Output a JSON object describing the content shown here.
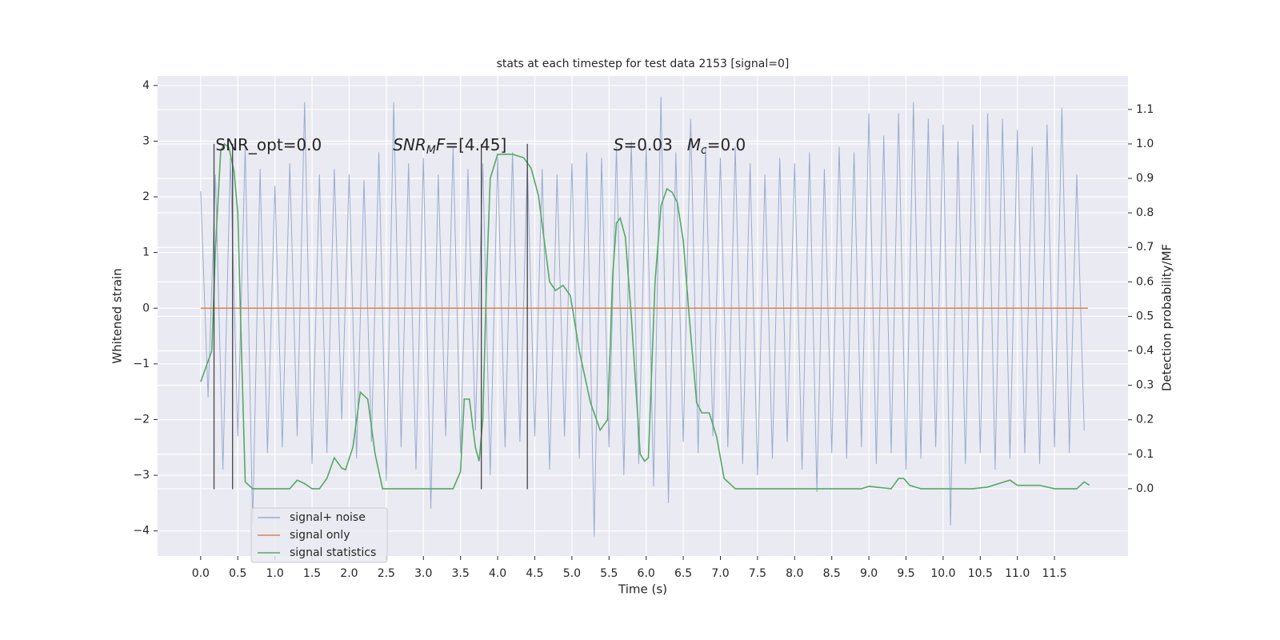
{
  "chart_data": {
    "type": "line",
    "title": "stats at each timestep for test data 2153 [signal=0]",
    "xlabel": "Time (s)",
    "ylabel": "Whitened strain",
    "y2label": "Detection probability/MF",
    "xlim": [
      -0.58,
      12.49
    ],
    "ylim": [
      -4.45,
      4.17
    ],
    "y2lim": [
      -0.195,
      1.197
    ],
    "xticks": [
      {
        "value": 0,
        "label": "0.0"
      },
      0.5,
      {
        "value": 1,
        "label": "1.0"
      },
      1.5,
      {
        "value": 2,
        "label": "2.0"
      },
      2.5,
      {
        "value": 3,
        "label": "3.0"
      },
      3.5,
      {
        "value": 4,
        "label": "4.0"
      },
      4.5,
      {
        "value": 5,
        "label": "5.0"
      },
      5.5,
      {
        "value": 6,
        "label": "6.0"
      },
      6.5,
      {
        "value": 7,
        "label": "7.0"
      },
      7.5,
      {
        "value": 8,
        "label": "8.0"
      },
      8.5,
      {
        "value": 9,
        "label": "9.0"
      },
      9.5,
      {
        "value": 10,
        "label": "10.0"
      },
      10.5,
      {
        "value": 11,
        "label": "11.0"
      },
      11.5
    ],
    "yticks": [
      {
        "value": -4,
        "label": "−4"
      },
      {
        "value": -3,
        "label": "−3"
      },
      {
        "value": -2,
        "label": "−2"
      },
      {
        "value": -1,
        "label": "−1"
      },
      0,
      1,
      2,
      3,
      4
    ],
    "y2ticks": [
      {
        "value": 0,
        "label": "0.0"
      },
      0.1,
      0.2,
      0.3,
      0.4,
      0.5,
      0.6,
      0.7,
      0.8,
      0.9,
      {
        "value": 1,
        "label": "1.0"
      },
      1.1
    ],
    "grid": true,
    "legend": "lower left",
    "series": [
      {
        "name": "signal+ noise",
        "color": "#9aaccf",
        "x": [
          0,
          0.1,
          0.2,
          0.3,
          0.4,
          0.5,
          0.6,
          0.7,
          0.8,
          0.9,
          1,
          1.1,
          1.2,
          1.3,
          1.4,
          1.5,
          1.6,
          1.7,
          1.8,
          1.9,
          2,
          2.1,
          2.2,
          2.3,
          2.4,
          2.5,
          2.6,
          2.7,
          2.8,
          2.9,
          3,
          3.1,
          3.2,
          3.3,
          3.4,
          3.5,
          3.6,
          3.7,
          3.8,
          3.9,
          4,
          4.1,
          4.2,
          4.3,
          4.4,
          4.5,
          4.6,
          4.7,
          4.8,
          4.9,
          5,
          5.1,
          5.2,
          5.3,
          5.4,
          5.5,
          5.6,
          5.7,
          5.8,
          5.9,
          6,
          6.1,
          6.2,
          6.3,
          6.4,
          6.5,
          6.6,
          6.7,
          6.8,
          6.9,
          7,
          7.1,
          7.2,
          7.3,
          7.4,
          7.5,
          7.6,
          7.7,
          7.8,
          7.9,
          8,
          8.1,
          8.2,
          8.3,
          8.4,
          8.5,
          8.6,
          8.7,
          8.8,
          8.9,
          9,
          9.1,
          9.2,
          9.3,
          9.4,
          9.5,
          9.6,
          9.7,
          9.8,
          9.9,
          10,
          10.1,
          10.2,
          10.3,
          10.4,
          10.5,
          10.6,
          10.7,
          10.8,
          10.9,
          11,
          11.1,
          11.2,
          11.3,
          11.4,
          11.5,
          11.6,
          11.7,
          11.8,
          11.9
        ],
        "values": [
          2.1,
          -1.6,
          2.4,
          -2.9,
          2.7,
          -2.3,
          2.9,
          -3.9,
          2.5,
          -2.6,
          2.2,
          -2.5,
          2.6,
          -2.3,
          3.7,
          -2.8,
          2.4,
          -2.6,
          2.5,
          -2.0,
          2.4,
          -2.7,
          2.3,
          -2.4,
          2.8,
          -3.1,
          3.7,
          -2.5,
          2.6,
          -2.9,
          2.7,
          -3.6,
          2.4,
          -2.3,
          2.9,
          -2.6,
          2.5,
          -2.2,
          2.6,
          -3.0,
          2.7,
          -2.5,
          2.8,
          -2.4,
          2.6,
          -2.3,
          2.5,
          -2.9,
          2.4,
          -2.3,
          2.6,
          -2.7,
          2.8,
          -4.1,
          2.7,
          -2.5,
          2.9,
          -3.0,
          3.0,
          -2.8,
          2.9,
          -3.2,
          3.8,
          -3.5,
          2.8,
          -2.4,
          3.4,
          -2.6,
          2.9,
          -2.3,
          2.7,
          -2.5,
          2.9,
          -2.8,
          2.6,
          -3.0,
          2.4,
          -2.7,
          2.7,
          -2.4,
          2.6,
          -2.9,
          2.8,
          -3.3,
          2.5,
          -2.6,
          2.9,
          -2.7,
          2.8,
          -2.5,
          3.5,
          -2.8,
          3.1,
          -2.6,
          3.5,
          -2.9,
          3.7,
          -2.7,
          3.4,
          -2.5,
          3.3,
          -3.9,
          3.0,
          -2.8,
          3.3,
          -2.6,
          3.5,
          -2.9,
          3.4,
          -2.7,
          3.2,
          -2.6,
          2.9,
          -2.8,
          3.3,
          -2.5,
          3.6,
          -2.6,
          2.4,
          -2.2
        ]
      },
      {
        "name": "signal only",
        "color": "#dd8452",
        "x": [
          0,
          11.95
        ],
        "values": [
          0,
          0
        ]
      },
      {
        "name": "signal statistics",
        "color": "#55a868",
        "axis": "y2",
        "x": [
          0,
          0.1,
          0.15,
          0.2,
          0.27,
          0.32,
          0.38,
          0.45,
          0.5,
          0.55,
          0.6,
          0.7,
          1.0,
          1.2,
          1.3,
          1.4,
          1.5,
          1.6,
          1.7,
          1.8,
          1.9,
          1.95,
          2.05,
          2.15,
          2.25,
          2.35,
          2.45,
          3.0,
          3.2,
          3.4,
          3.5,
          3.55,
          3.62,
          3.7,
          3.75,
          3.8,
          3.85,
          3.9,
          4.0,
          4.2,
          4.35,
          4.45,
          4.55,
          4.7,
          4.78,
          4.88,
          4.98,
          5.1,
          5.25,
          5.38,
          5.48,
          5.55,
          5.6,
          5.65,
          5.72,
          5.8,
          5.92,
          5.98,
          6.03,
          6.12,
          6.2,
          6.28,
          6.35,
          6.42,
          6.5,
          6.58,
          6.68,
          6.75,
          6.85,
          6.95,
          7.05,
          7.2,
          8.0,
          8.7,
          8.9,
          9.0,
          9.3,
          9.4,
          9.47,
          9.55,
          9.7,
          10.4,
          10.6,
          10.9,
          11.0,
          11.3,
          11.5,
          11.8,
          11.9,
          11.97
        ],
        "values": [
          0.31,
          0.37,
          0.4,
          0.7,
          0.98,
          1.0,
          0.99,
          0.92,
          0.8,
          0.4,
          0.02,
          0.0,
          0.0,
          0.0,
          0.025,
          0.015,
          0.0,
          0.0,
          0.03,
          0.09,
          0.06,
          0.055,
          0.12,
          0.28,
          0.26,
          0.1,
          0.0,
          0.0,
          0.0,
          0.0,
          0.05,
          0.26,
          0.26,
          0.12,
          0.08,
          0.2,
          0.6,
          0.9,
          0.97,
          0.97,
          0.96,
          0.93,
          0.85,
          0.6,
          0.575,
          0.59,
          0.56,
          0.4,
          0.25,
          0.17,
          0.2,
          0.62,
          0.77,
          0.785,
          0.73,
          0.5,
          0.1,
          0.08,
          0.09,
          0.6,
          0.82,
          0.87,
          0.86,
          0.83,
          0.72,
          0.5,
          0.25,
          0.22,
          0.22,
          0.15,
          0.03,
          0.0,
          0.0,
          0.0,
          0.0,
          0.007,
          0.0,
          0.03,
          0.03,
          0.01,
          0.0,
          0.0,
          0.005,
          0.025,
          0.01,
          0.01,
          0.0,
          0.0,
          0.02,
          0.01
        ]
      }
    ],
    "vlines": {
      "x": [
        0.18,
        0.43,
        3.78,
        4.4
      ],
      "ymin": -3.25,
      "ymax": 2.95,
      "color": "#444444"
    },
    "annotations": [
      {
        "x": 0.2,
        "y": 2.95,
        "parts": [
          {
            "text": "SNR_opt=0.0"
          }
        ]
      },
      {
        "x": 2.59,
        "y": 2.95,
        "parts": [
          {
            "text": "SNR",
            "italic": true
          },
          {
            "text": "M",
            "italic": true,
            "sub": true
          },
          {
            "text": "F",
            "italic": true
          },
          {
            "text": "=[4.45]"
          }
        ]
      },
      {
        "x": 5.56,
        "y": 2.95,
        "parts": [
          {
            "text": "S",
            "italic": true
          },
          {
            "text": "=0.03"
          }
        ]
      },
      {
        "x": 6.55,
        "y": 2.95,
        "parts": [
          {
            "text": "M",
            "italic": true
          },
          {
            "text": "c",
            "italic": true,
            "sub": true
          },
          {
            "text": "=0.0"
          }
        ]
      }
    ]
  }
}
